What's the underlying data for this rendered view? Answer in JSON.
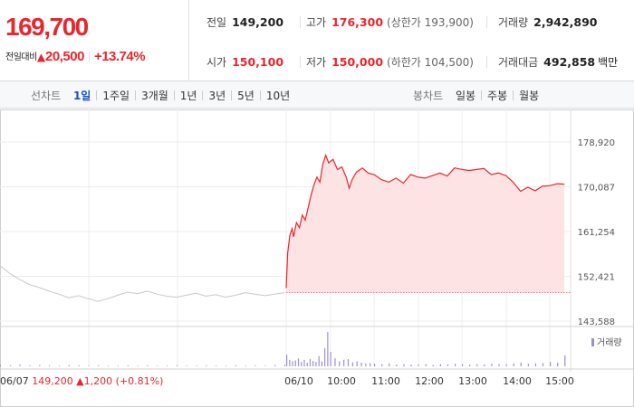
{
  "quote": {
    "price": "169,700",
    "change_label": "전일대비",
    "change_arrow": "▲",
    "change_amount": "20,500",
    "change_percent": "+13.74%",
    "stats": {
      "prev_close": {
        "label": "전일",
        "value": "149,200"
      },
      "high": {
        "label": "고가",
        "value": "176,300",
        "sub": "(상한가 193,900)"
      },
      "volume": {
        "label": "거래량",
        "value": "2,942,890"
      },
      "open": {
        "label": "시가",
        "value": "150,100"
      },
      "low": {
        "label": "저가",
        "value": "150,000",
        "sub": "(하한가 104,500)"
      },
      "turnover": {
        "label": "거래대금",
        "value": "492,858",
        "unit": "백만"
      }
    }
  },
  "tabs": {
    "line_label": "선차트",
    "line_items": [
      "1일",
      "1주일",
      "3개월",
      "1년",
      "3년",
      "5년",
      "10년"
    ],
    "line_active": 0,
    "candle_label": "봉차트",
    "candle_items": [
      "일봉",
      "주봉",
      "월봉"
    ]
  },
  "colors": {
    "up": "#e8262c",
    "area_fill": "#fde3e4",
    "prev_day_line": "#c8c8c8",
    "volume_bar": "#9c8ed6",
    "active_tab": "#1552c8"
  },
  "chart_data": {
    "type": "line",
    "ylim": [
      143588,
      178920
    ],
    "yticks": [
      "178,920",
      "170,087",
      "161,254",
      "152,421",
      "143,588"
    ],
    "xticks": [
      "06/10",
      "10:00",
      "11:00",
      "12:00",
      "13:00",
      "14:00",
      "15:00"
    ],
    "prev_close_reference": 149200,
    "prev_day": {
      "date": "06/07",
      "close": "149,200",
      "arrow": "▲",
      "change": "1,200",
      "change_percent": "(+0.81%)",
      "values": [
        154500,
        153000,
        151800,
        150800,
        150200,
        149500,
        148900,
        148200,
        148600,
        148000,
        147500,
        148000,
        148700,
        149300,
        149000,
        149500,
        148900,
        148500,
        148300,
        148700,
        149100,
        148500,
        148800,
        148300,
        148700,
        149200,
        148900,
        148600,
        148900,
        149200
      ]
    },
    "today": {
      "date": "06/10",
      "series": [
        {
          "t": "09:00",
          "v": 150100
        },
        {
          "t": "09:02",
          "v": 157000
        },
        {
          "t": "09:05",
          "v": 160500
        },
        {
          "t": "09:08",
          "v": 161800
        },
        {
          "t": "09:10",
          "v": 160200
        },
        {
          "t": "09:14",
          "v": 163000
        },
        {
          "t": "09:18",
          "v": 162000
        },
        {
          "t": "09:22",
          "v": 164500
        },
        {
          "t": "09:26",
          "v": 163500
        },
        {
          "t": "09:30",
          "v": 166000
        },
        {
          "t": "09:34",
          "v": 168500
        },
        {
          "t": "09:38",
          "v": 170500
        },
        {
          "t": "09:42",
          "v": 172000
        },
        {
          "t": "09:46",
          "v": 171000
        },
        {
          "t": "09:50",
          "v": 174500
        },
        {
          "t": "09:54",
          "v": 176300
        },
        {
          "t": "09:58",
          "v": 174800
        },
        {
          "t": "10:04",
          "v": 175500
        },
        {
          "t": "10:10",
          "v": 173500
        },
        {
          "t": "10:16",
          "v": 174000
        },
        {
          "t": "10:22",
          "v": 172000
        },
        {
          "t": "10:26",
          "v": 169800
        },
        {
          "t": "10:30",
          "v": 171500
        },
        {
          "t": "10:36",
          "v": 173000
        },
        {
          "t": "10:44",
          "v": 173800
        },
        {
          "t": "10:52",
          "v": 172800
        },
        {
          "t": "11:00",
          "v": 172500
        },
        {
          "t": "11:10",
          "v": 171500
        },
        {
          "t": "11:20",
          "v": 171000
        },
        {
          "t": "11:30",
          "v": 171800
        },
        {
          "t": "11:40",
          "v": 170800
        },
        {
          "t": "11:50",
          "v": 172500
        },
        {
          "t": "12:00",
          "v": 172000
        },
        {
          "t": "12:10",
          "v": 171800
        },
        {
          "t": "12:20",
          "v": 172300
        },
        {
          "t": "12:30",
          "v": 172800
        },
        {
          "t": "12:40",
          "v": 172200
        },
        {
          "t": "12:50",
          "v": 173800
        },
        {
          "t": "13:00",
          "v": 173500
        },
        {
          "t": "13:10",
          "v": 173300
        },
        {
          "t": "13:20",
          "v": 173500
        },
        {
          "t": "13:30",
          "v": 173700
        },
        {
          "t": "13:40",
          "v": 172500
        },
        {
          "t": "13:50",
          "v": 172800
        },
        {
          "t": "14:00",
          "v": 172300
        },
        {
          "t": "14:10",
          "v": 171000
        },
        {
          "t": "14:20",
          "v": 169200
        },
        {
          "t": "14:30",
          "v": 170000
        },
        {
          "t": "14:40",
          "v": 169300
        },
        {
          "t": "14:50",
          "v": 170200
        },
        {
          "t": "15:00",
          "v": 170300
        },
        {
          "t": "15:10",
          "v": 170700
        },
        {
          "t": "15:20",
          "v": 170600
        }
      ]
    },
    "volume": {
      "legend": "거래량",
      "prev_day": [
        0.04,
        0.03,
        0.05,
        0.03,
        0.04,
        0.03,
        0.02,
        0.04,
        0.03,
        0.02,
        0.03,
        0.02,
        0.02,
        0.03,
        0.02,
        0.03,
        0.02,
        0.02,
        0.03,
        0.02,
        0.02,
        0.03,
        0.02,
        0.02,
        0.03,
        0.02,
        0.03,
        0.02,
        0.04,
        0.05
      ],
      "today": [
        {
          "t": "09:00",
          "v": 0.32
        },
        {
          "t": "09:04",
          "v": 0.18
        },
        {
          "t": "09:08",
          "v": 0.14
        },
        {
          "t": "09:12",
          "v": 0.16
        },
        {
          "t": "09:16",
          "v": 0.22
        },
        {
          "t": "09:20",
          "v": 0.12
        },
        {
          "t": "09:24",
          "v": 0.18
        },
        {
          "t": "09:28",
          "v": 0.1
        },
        {
          "t": "09:32",
          "v": 0.2
        },
        {
          "t": "09:36",
          "v": 0.15
        },
        {
          "t": "09:40",
          "v": 0.12
        },
        {
          "t": "09:44",
          "v": 0.28
        },
        {
          "t": "09:48",
          "v": 0.14
        },
        {
          "t": "09:52",
          "v": 0.5
        },
        {
          "t": "09:56",
          "v": 0.95
        },
        {
          "t": "10:00",
          "v": 0.4
        },
        {
          "t": "10:06",
          "v": 0.22
        },
        {
          "t": "10:12",
          "v": 0.14
        },
        {
          "t": "10:18",
          "v": 0.18
        },
        {
          "t": "10:24",
          "v": 0.2
        },
        {
          "t": "10:30",
          "v": 0.11
        },
        {
          "t": "10:36",
          "v": 0.14
        },
        {
          "t": "10:42",
          "v": 0.1
        },
        {
          "t": "10:48",
          "v": 0.08
        },
        {
          "t": "10:54",
          "v": 0.09
        },
        {
          "t": "11:00",
          "v": 0.07
        },
        {
          "t": "11:10",
          "v": 0.06
        },
        {
          "t": "11:20",
          "v": 0.08
        },
        {
          "t": "11:30",
          "v": 0.05
        },
        {
          "t": "11:40",
          "v": 0.06
        },
        {
          "t": "11:50",
          "v": 0.05
        },
        {
          "t": "12:00",
          "v": 0.05
        },
        {
          "t": "12:10",
          "v": 0.06
        },
        {
          "t": "12:20",
          "v": 0.04
        },
        {
          "t": "12:30",
          "v": 0.06
        },
        {
          "t": "12:40",
          "v": 0.05
        },
        {
          "t": "12:50",
          "v": 0.07
        },
        {
          "t": "13:00",
          "v": 0.06
        },
        {
          "t": "13:10",
          "v": 0.05
        },
        {
          "t": "13:20",
          "v": 0.06
        },
        {
          "t": "13:30",
          "v": 0.05
        },
        {
          "t": "13:40",
          "v": 0.07
        },
        {
          "t": "13:50",
          "v": 0.06
        },
        {
          "t": "14:00",
          "v": 0.06
        },
        {
          "t": "14:10",
          "v": 0.08
        },
        {
          "t": "14:20",
          "v": 0.1
        },
        {
          "t": "14:30",
          "v": 0.07
        },
        {
          "t": "14:40",
          "v": 0.08
        },
        {
          "t": "14:50",
          "v": 0.09
        },
        {
          "t": "15:00",
          "v": 0.12
        },
        {
          "t": "15:10",
          "v": 0.1
        },
        {
          "t": "15:20",
          "v": 0.3
        }
      ]
    }
  }
}
